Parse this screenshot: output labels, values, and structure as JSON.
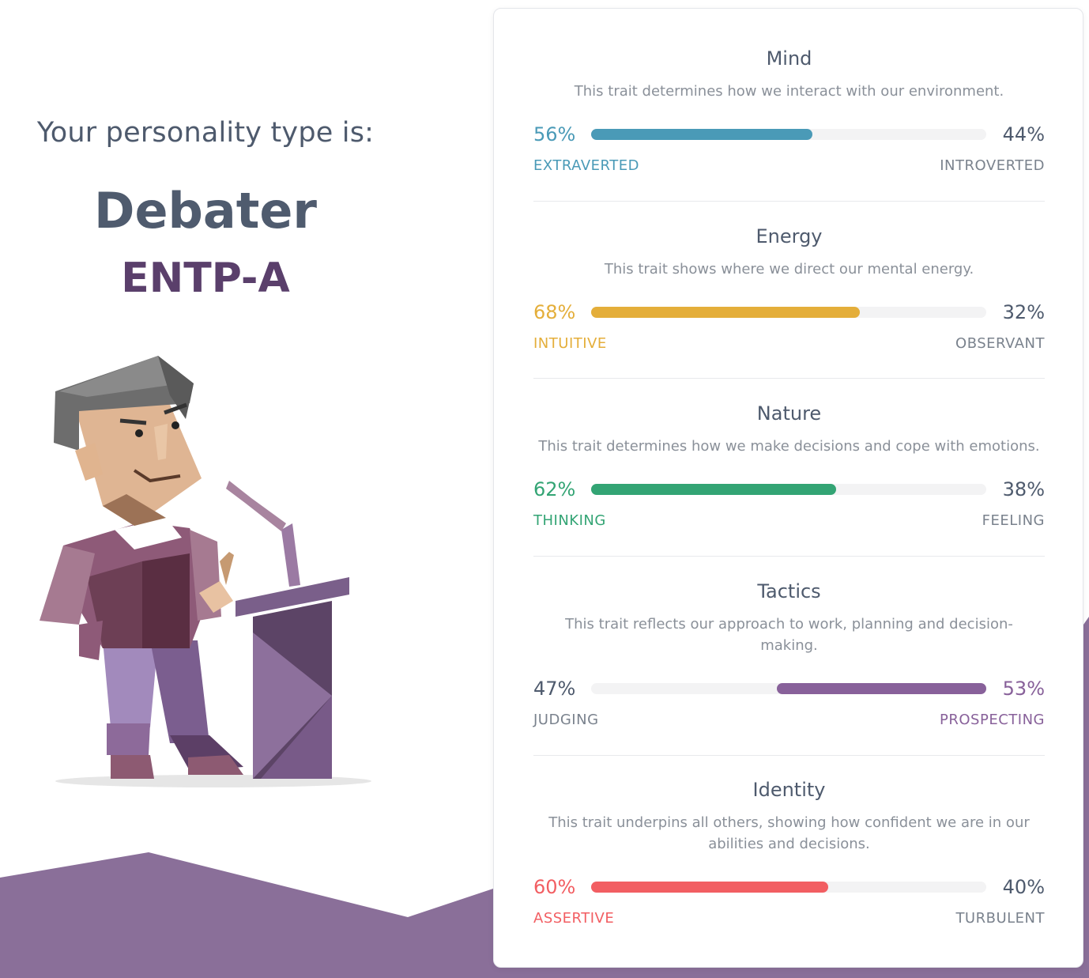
{
  "header": {
    "intro": "Your personality type is:",
    "type_name": "Debater",
    "type_code": "ENTP-A"
  },
  "colors": {
    "mind": "#4a9ab7",
    "energy": "#e4ae3a",
    "nature": "#33a474",
    "tactics": "#88619a",
    "identity": "#f25e62",
    "muted": "#4e5a6d"
  },
  "traits": [
    {
      "title": "Mind",
      "description": "This trait determines how we interact with our environment.",
      "left_pct": "56%",
      "right_pct": "44%",
      "left_label": "EXTRAVERTED",
      "right_label": "INTROVERTED",
      "value": 56,
      "dominant": "left"
    },
    {
      "title": "Energy",
      "description": "This trait shows where we direct our mental energy.",
      "left_pct": "68%",
      "right_pct": "32%",
      "left_label": "INTUITIVE",
      "right_label": "OBSERVANT",
      "value": 68,
      "dominant": "left"
    },
    {
      "title": "Nature",
      "description": "This trait determines how we make decisions and cope with emotions.",
      "left_pct": "62%",
      "right_pct": "38%",
      "left_label": "THINKING",
      "right_label": "FEELING",
      "value": 62,
      "dominant": "left"
    },
    {
      "title": "Tactics",
      "description": "This trait reflects our approach to work, planning and decision-making.",
      "left_pct": "47%",
      "right_pct": "53%",
      "left_label": "JUDGING",
      "right_label": "PROSPECTING",
      "value": 53,
      "dominant": "right"
    },
    {
      "title": "Identity",
      "description": "This trait underpins all others, showing how confident we are in our abilities and decisions.",
      "left_pct": "60%",
      "right_pct": "40%",
      "left_label": "ASSERTIVE",
      "right_label": "TURBULENT",
      "value": 60,
      "dominant": "left"
    }
  ]
}
